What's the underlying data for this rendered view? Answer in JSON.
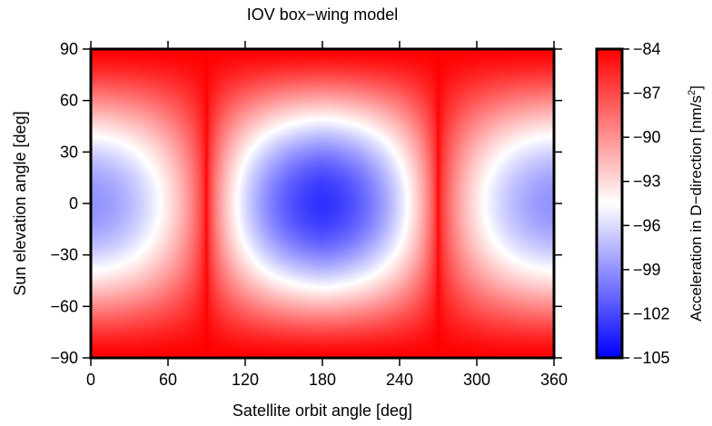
{
  "chart_data": {
    "type": "heatmap",
    "title": "IOV box−wing model",
    "xlabel": "Satellite orbit angle [deg]",
    "ylabel": "Sun elevation angle [deg]",
    "xlim": [
      0,
      360
    ],
    "ylim": [
      -90,
      90
    ],
    "xticks": [
      "0",
      "60",
      "120",
      "180",
      "240",
      "300",
      "360"
    ],
    "yticks": [
      "−90",
      "−60",
      "−30",
      "0",
      "30",
      "60",
      "90"
    ],
    "colorbar": {
      "label_main": "Acceleration in D−direction [nm/s",
      "label_sup": "2",
      "label_end": "]",
      "range": [
        -105,
        -84
      ],
      "ticks": [
        "−105",
        "−102",
        "−99",
        "−96",
        "−93",
        "−90",
        "−87",
        "−84"
      ],
      "colormap": [
        "#0000ff",
        "#ffffff",
        "#ff0000"
      ]
    },
    "description_values": {
      "max_at_elevation_pm90": -84,
      "ridge_orbit_angles": [
        90,
        270
      ],
      "min_at": {
        "orbit_angle": 180,
        "elevation": 0,
        "value": -103
      },
      "secondary_min_at": {
        "orbit_angle": 0,
        "elevation": 0,
        "value": -99
      }
    }
  }
}
